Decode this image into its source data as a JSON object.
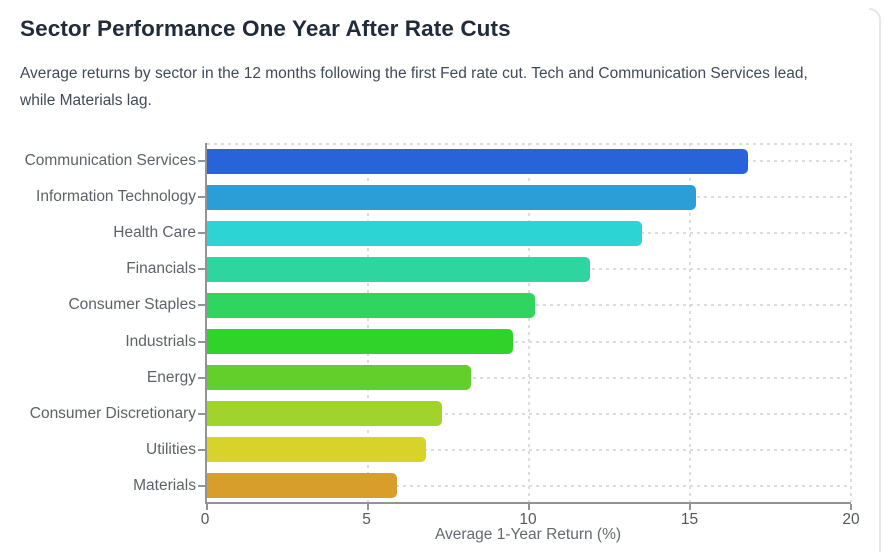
{
  "header": {
    "title": "Sector Performance One Year After Rate Cuts",
    "subtitle": "Average returns by sector in the 12 months following the first Fed rate cut. Tech and Communication Services lead, while Materials lag."
  },
  "chart_data": {
    "type": "bar",
    "orientation": "horizontal",
    "title": "Sector Performance One Year After Rate Cuts",
    "categories": [
      "Communication Services",
      "Information Technology",
      "Health Care",
      "Financials",
      "Consumer Staples",
      "Industrials",
      "Energy",
      "Consumer Discretionary",
      "Utilities",
      "Materials"
    ],
    "values": [
      16.8,
      15.2,
      13.5,
      11.9,
      10.2,
      9.5,
      8.2,
      7.3,
      6.8,
      5.9
    ],
    "bar_colors": [
      "#2963d9",
      "#2b9ed8",
      "#2cd4d4",
      "#2ed59e",
      "#2fd55e",
      "#30d32a",
      "#63cf2b",
      "#a0d32b",
      "#d8d32a",
      "#d89e2b"
    ],
    "xlabel": "Average 1-Year Return (%)",
    "xlim": [
      0,
      20
    ],
    "xticks": [
      0,
      5,
      10,
      15,
      20
    ],
    "grid": "dashed",
    "legend": "none"
  },
  "style": {
    "title_color": "#212b3a",
    "subtitle_color": "#414a56",
    "axis_line_color": "#8f9499",
    "grid_color": "#dadcde",
    "category_label_color": "#5d6268",
    "tick_label_color": "#54585e",
    "card_edge_color": "#e4e7eb",
    "background": "#ffffff"
  }
}
